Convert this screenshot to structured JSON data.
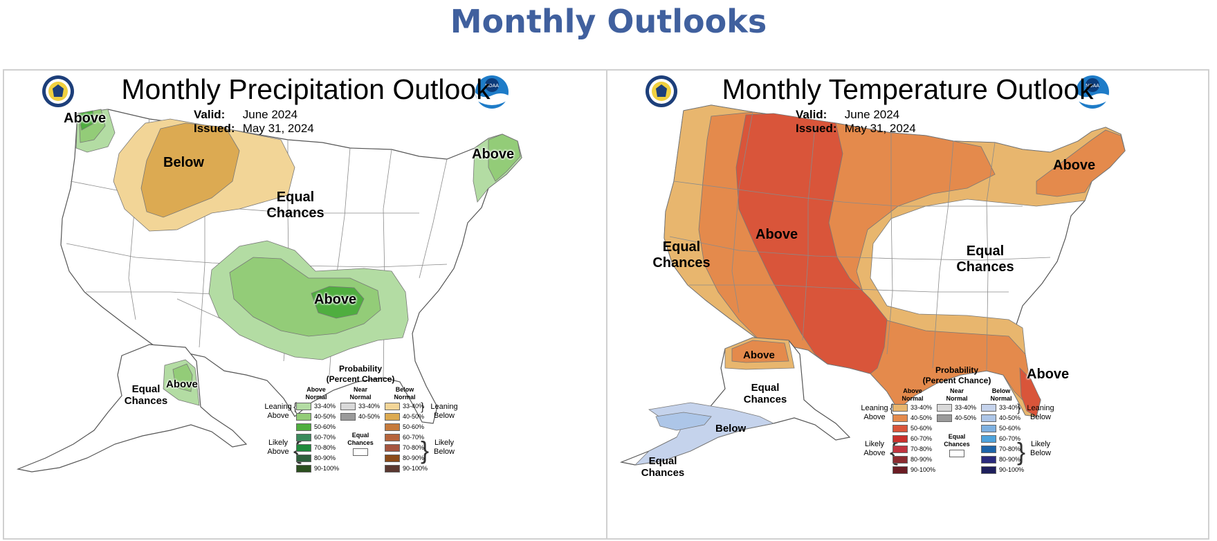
{
  "page_title": "Monthly Outlooks",
  "precip": {
    "title": "Monthly Precipitation Outlook",
    "valid_label": "Valid:",
    "valid_value": "June 2024",
    "issued_label": "Issued:",
    "issued_value": "May 31, 2024",
    "labels": {
      "above_nw": "Above",
      "below_nw": "Below",
      "above_ne": "Above",
      "equal_chances_1": "Equal",
      "equal_chances_2": "Chances",
      "above_sc": "Above",
      "ak_above": "Above",
      "ak_equal_1": "Equal",
      "ak_equal_2": "Chances"
    }
  },
  "temp": {
    "title": "Monthly Temperature Outlook",
    "valid_label": "Valid:",
    "valid_value": "June 2024",
    "issued_label": "Issued:",
    "issued_value": "May 31, 2024",
    "labels": {
      "above_west": "Above",
      "above_ne": "Above",
      "above_fl": "Above",
      "equal_w_1": "Equal",
      "equal_w_2": "Chances",
      "equal_e_1": "Equal",
      "equal_e_2": "Chances",
      "ak_above": "Above",
      "ak_equal_1": "Equal",
      "ak_equal_2": "Chances",
      "ak_below": "Below",
      "ak_sw_equal_1": "Equal",
      "ak_sw_equal_2": "Chances"
    }
  },
  "legend": {
    "title_1": "Probability",
    "title_2": "(Percent Chance)",
    "above_normal_1": "Above",
    "above_normal_2": "Normal",
    "near_normal_1": "Near",
    "near_normal_2": "Normal",
    "below_normal_1": "Below",
    "below_normal_2": "Normal",
    "leaning_above_1": "Leaning",
    "leaning_above_2": "Above",
    "likely_above_1": "Likely",
    "likely_above_2": "Above",
    "leaning_below_1": "Leaning",
    "leaning_below_2": "Below",
    "likely_below_1": "Likely",
    "likely_below_2": "Below",
    "equal_1": "Equal",
    "equal_2": "Chances",
    "bins": [
      "33-40%",
      "40-50%",
      "50-60%",
      "60-70%",
      "70-80%",
      "80-90%",
      "90-100%"
    ],
    "near_bins": [
      "33-40%",
      "40-50%"
    ],
    "precip_above_colors": [
      "#b3dca3",
      "#93cc78",
      "#4fae3f",
      "#3a8a5c",
      "#1f8a3c",
      "#2e5f3c",
      "#2b4f1f"
    ],
    "precip_below_colors": [
      "#f2d597",
      "#dcaa52",
      "#c57a3c",
      "#b5643c",
      "#a5553f",
      "#8a4a18",
      "#5a3830"
    ],
    "temp_above_colors": [
      "#e8b66e",
      "#e48a4c",
      "#d9553a",
      "#c9302c",
      "#c0343f",
      "#8b2b30",
      "#6b1c24"
    ],
    "temp_below_colors": [
      "#c5d3ec",
      "#adc6e8",
      "#7fb1e1",
      "#4fa3dc",
      "#1d64a8",
      "#2a2a7c",
      "#1e1f5c"
    ],
    "near_colors": [
      "#d9d9d9",
      "#9a9a9a"
    ]
  }
}
